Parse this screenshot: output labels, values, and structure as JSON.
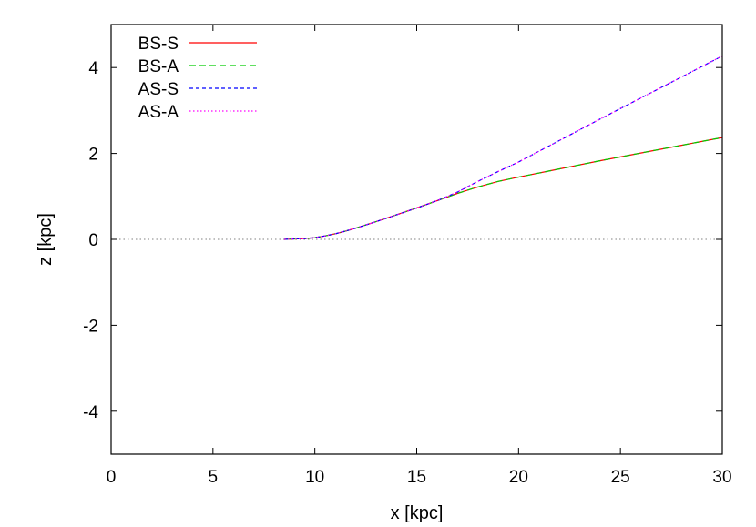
{
  "chart_data": {
    "type": "line",
    "xlabel": "x [kpc]",
    "ylabel": "z [kpc]",
    "xlim": [
      0,
      30
    ],
    "ylim": [
      -5,
      5
    ],
    "xticks": [
      0,
      5,
      10,
      15,
      20,
      25,
      30
    ],
    "yticks": [
      -4,
      -2,
      0,
      2,
      4
    ],
    "legend_position": "top-left",
    "grid": false,
    "reference_line": {
      "y": 0,
      "style": "dotted",
      "color": "#808080"
    },
    "series": [
      {
        "name": "BS-S",
        "color": "#ff0000",
        "dash": "solid",
        "x": [
          8.5,
          9,
          9.5,
          10,
          10.5,
          11,
          11.5,
          12,
          13,
          14,
          15,
          16,
          17,
          18,
          19,
          20,
          22,
          24,
          26,
          28,
          30
        ],
        "y": [
          0.0,
          0.01,
          0.02,
          0.04,
          0.08,
          0.13,
          0.19,
          0.26,
          0.41,
          0.57,
          0.73,
          0.9,
          1.07,
          1.22,
          1.35,
          1.45,
          1.64,
          1.83,
          2.01,
          2.19,
          2.37
        ]
      },
      {
        "name": "BS-A",
        "color": "#00cc00",
        "dash": "long-dash",
        "x": [
          8.5,
          9,
          9.5,
          10,
          10.5,
          11,
          11.5,
          12,
          13,
          14,
          15,
          16,
          17,
          18,
          19,
          20,
          22,
          24,
          26,
          28,
          30
        ],
        "y": [
          0.0,
          0.01,
          0.02,
          0.04,
          0.08,
          0.13,
          0.19,
          0.26,
          0.41,
          0.57,
          0.73,
          0.9,
          1.07,
          1.22,
          1.35,
          1.45,
          1.64,
          1.83,
          2.01,
          2.19,
          2.37
        ]
      },
      {
        "name": "AS-S",
        "color": "#0000ff",
        "dash": "short-dash",
        "x": [
          8.5,
          9,
          9.5,
          10,
          10.5,
          11,
          11.5,
          12,
          13,
          14,
          15,
          16,
          17,
          18,
          19,
          20,
          22,
          24,
          26,
          28,
          30
        ],
        "y": [
          0.0,
          0.01,
          0.02,
          0.04,
          0.08,
          0.13,
          0.19,
          0.26,
          0.41,
          0.57,
          0.73,
          0.9,
          1.1,
          1.35,
          1.58,
          1.8,
          2.3,
          2.8,
          3.29,
          3.78,
          4.27
        ]
      },
      {
        "name": "AS-A",
        "color": "#ff00ff",
        "dash": "dotted",
        "x": [
          8.5,
          9,
          9.5,
          10,
          10.5,
          11,
          11.5,
          12,
          13,
          14,
          15,
          16,
          17,
          18,
          19,
          20,
          22,
          24,
          26,
          28,
          30
        ],
        "y": [
          0.0,
          0.01,
          0.02,
          0.04,
          0.08,
          0.13,
          0.19,
          0.26,
          0.41,
          0.57,
          0.73,
          0.9,
          1.1,
          1.35,
          1.58,
          1.8,
          2.3,
          2.8,
          3.29,
          3.78,
          4.27
        ]
      }
    ]
  }
}
